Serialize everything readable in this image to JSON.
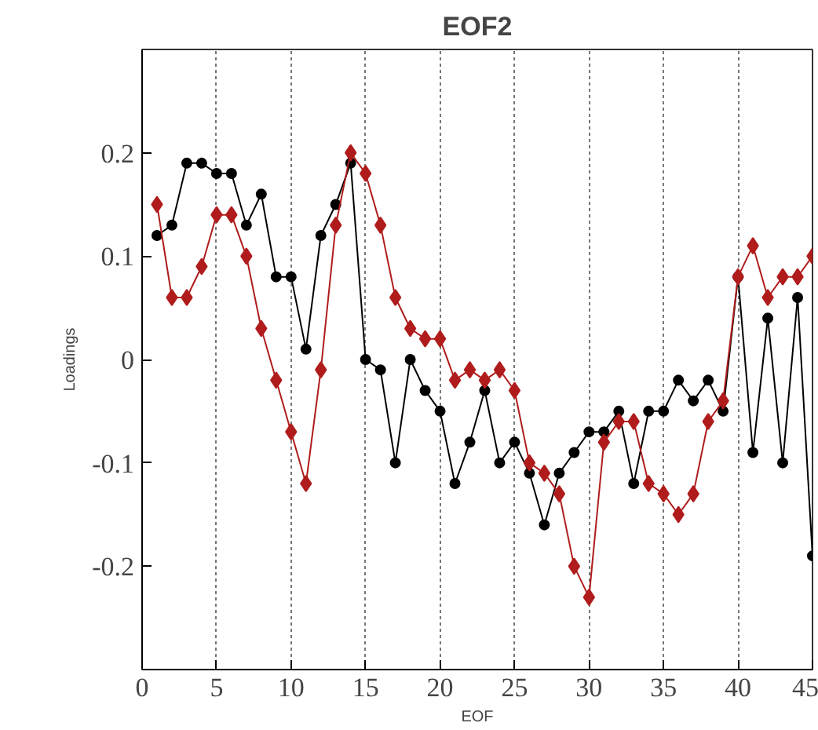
{
  "chart_data": {
    "type": "line",
    "title": "EOF2",
    "xlabel": "EOF",
    "ylabel": "Loadings",
    "xlim": [
      0,
      45
    ],
    "ylim": [
      -0.3,
      0.3
    ],
    "xticks": [
      0,
      5,
      10,
      15,
      20,
      25,
      30,
      35,
      40,
      45
    ],
    "yticks": [
      -0.2,
      -0.1,
      {
        "value": 0,
        "label": "0"
      },
      0.1,
      0.2
    ],
    "grid": "x",
    "line_style": "solid",
    "x": [
      1,
      2,
      3,
      4,
      5,
      6,
      7,
      8,
      9,
      10,
      11,
      12,
      13,
      14,
      15,
      16,
      17,
      18,
      19,
      20,
      21,
      22,
      23,
      24,
      25,
      26,
      27,
      28,
      29,
      30,
      31,
      32,
      33,
      34,
      35,
      36,
      37,
      38,
      39,
      40,
      41,
      42,
      43,
      44,
      45
    ],
    "series": [
      {
        "color": "#000000",
        "marker": "circle",
        "values": [
          0.12,
          0.13,
          0.19,
          0.19,
          0.18,
          0.18,
          0.13,
          0.16,
          0.08,
          0.08,
          0.01,
          0.12,
          0.15,
          0.19,
          0,
          -0.01,
          -0.1,
          0,
          -0.03,
          -0.05,
          -0.12,
          -0.08,
          -0.03,
          -0.1,
          -0.08,
          -0.11,
          -0.16,
          -0.11,
          -0.09,
          -0.07,
          -0.07,
          -0.05,
          -0.12,
          -0.05,
          -0.05,
          -0.02,
          -0.04,
          -0.02,
          -0.05,
          0.08,
          -0.09,
          0.04,
          -0.1,
          0.06,
          -0.19
        ]
      },
      {
        "color": "#b01c1c",
        "marker": "diamond",
        "values": [
          0.15,
          0.06,
          0.06,
          0.09,
          0.14,
          0.14,
          0.1,
          0.03,
          -0.02,
          -0.07,
          -0.12,
          -0.01,
          0.13,
          0.2,
          0.18,
          0.13,
          0.06,
          0.03,
          0.02,
          0.02,
          -0.02,
          -0.01,
          -0.02,
          -0.01,
          -0.03,
          -0.1,
          -0.11,
          -0.13,
          -0.2,
          -0.23,
          -0.08,
          -0.06,
          -0.06,
          -0.12,
          -0.13,
          -0.15,
          -0.13,
          -0.06,
          -0.04,
          0.08,
          0.11,
          0.06,
          0.08,
          0.08,
          0.1
        ]
      }
    ]
  }
}
